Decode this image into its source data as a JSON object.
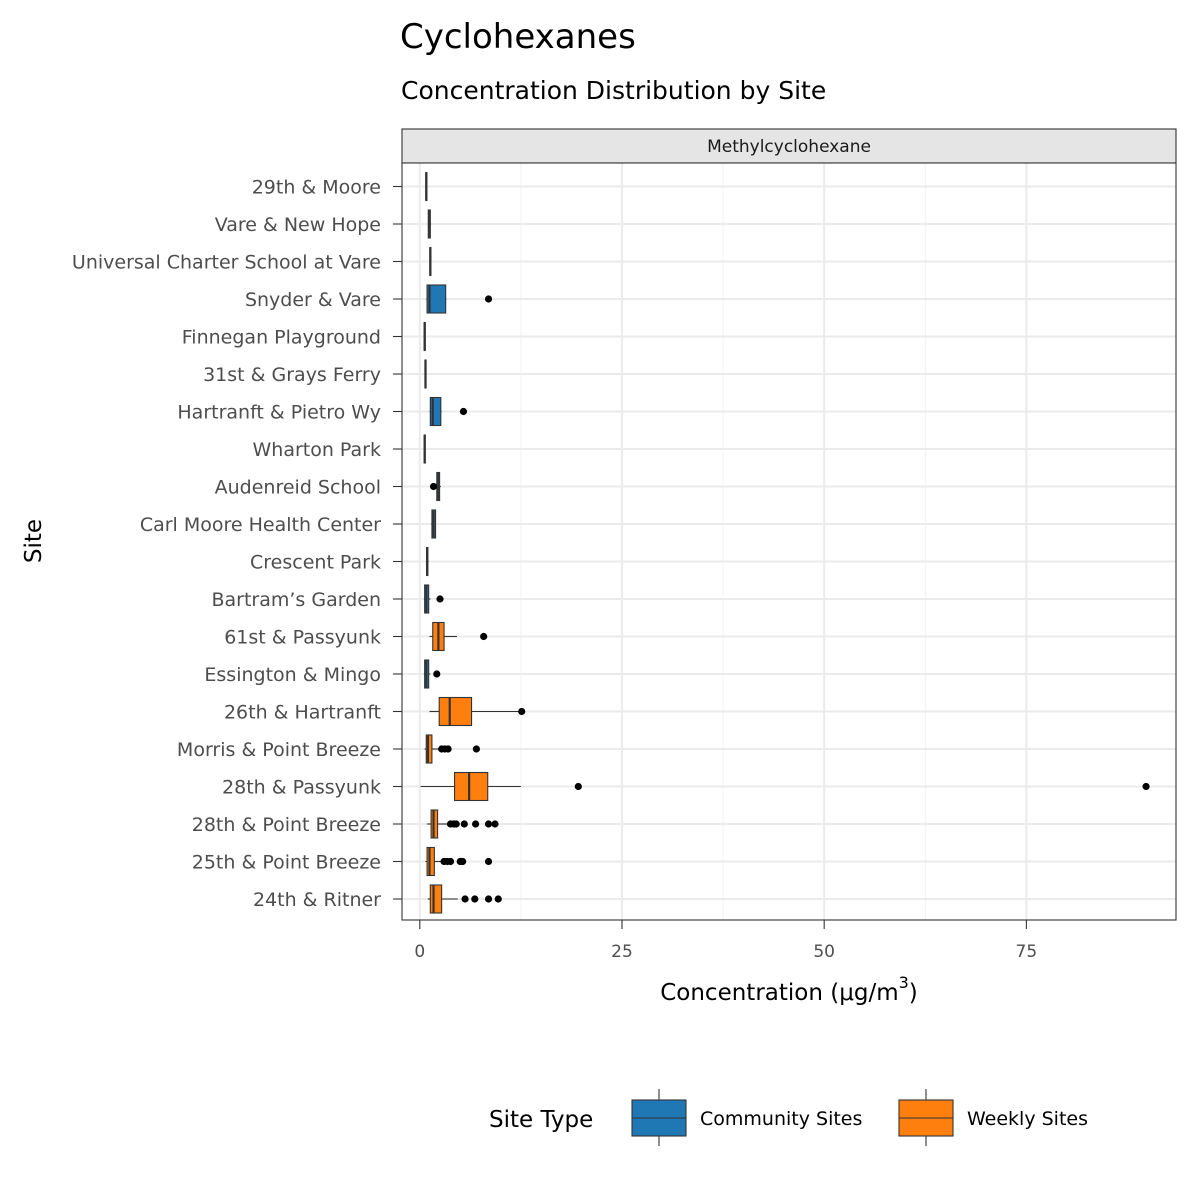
{
  "chart_data": {
    "type": "boxplot",
    "orientation": "horizontal",
    "title": "Cyclohexanes",
    "subtitle": "Concentration Distribution by Site",
    "facet": "Methylcyclohexane",
    "xlabel": "Concentration (μg/m",
    "xlabel_superscript": "3",
    "xlabel_suffix": ")",
    "ylabel": "Site",
    "xlim": [
      -2.2,
      93.5
    ],
    "xticks": [
      0,
      25,
      50,
      75
    ],
    "grid": true,
    "legend": {
      "title": "Site Type",
      "position": "bottom",
      "entries": [
        {
          "label": "Community Sites",
          "color": "#1f77b4"
        },
        {
          "label": "Weekly Sites",
          "color": "#ff7f0e"
        }
      ]
    },
    "series": [
      {
        "site": "29th & Moore",
        "type": "Community Sites",
        "min": 0.7,
        "q1": 0.75,
        "median": 0.8,
        "q3": 0.85,
        "max": 0.9,
        "outliers": []
      },
      {
        "site": "Vare & New Hope",
        "type": "Community Sites",
        "min": 1.0,
        "q1": 1.05,
        "median": 1.15,
        "q3": 1.3,
        "max": 1.4,
        "outliers": []
      },
      {
        "site": "Universal Charter School at Vare",
        "type": "Community Sites",
        "min": 1.2,
        "q1": 1.25,
        "median": 1.3,
        "q3": 1.35,
        "max": 1.4,
        "outliers": []
      },
      {
        "site": "Snyder & Vare",
        "type": "Community Sites",
        "min": 0.8,
        "q1": 0.9,
        "median": 1.2,
        "q3": 3.2,
        "max": 3.3,
        "outliers": [
          8.5
        ]
      },
      {
        "site": "Finnegan Playground",
        "type": "Community Sites",
        "min": 0.5,
        "q1": 0.55,
        "median": 0.6,
        "q3": 0.65,
        "max": 0.7,
        "outliers": []
      },
      {
        "site": "31st & Grays Ferry",
        "type": "Community Sites",
        "min": 0.6,
        "q1": 0.65,
        "median": 0.7,
        "q3": 0.75,
        "max": 0.8,
        "outliers": []
      },
      {
        "site": "Hartranft & Pietro Wy",
        "type": "Community Sites",
        "min": 1.2,
        "q1": 1.3,
        "median": 1.6,
        "q3": 2.6,
        "max": 2.7,
        "outliers": [
          5.4
        ]
      },
      {
        "site": "Wharton Park",
        "type": "Community Sites",
        "min": 0.5,
        "q1": 0.55,
        "median": 0.6,
        "q3": 0.65,
        "max": 0.7,
        "outliers": []
      },
      {
        "site": "Audenreid School",
        "type": "Community Sites",
        "min": 2.0,
        "q1": 2.1,
        "median": 2.3,
        "q3": 2.45,
        "max": 2.6,
        "outliers": [
          1.7
        ]
      },
      {
        "site": "Carl Moore Health Center",
        "type": "Community Sites",
        "min": 1.4,
        "q1": 1.5,
        "median": 1.7,
        "q3": 1.95,
        "max": 2.0,
        "outliers": []
      },
      {
        "site": "Crescent Park",
        "type": "Community Sites",
        "min": 0.8,
        "q1": 0.85,
        "median": 0.9,
        "q3": 1.0,
        "max": 1.1,
        "outliers": []
      },
      {
        "site": "Bartram’s Garden",
        "type": "Community Sites",
        "min": 0.5,
        "q1": 0.6,
        "median": 0.8,
        "q3": 1.1,
        "max": 1.3,
        "outliers": [
          2.5
        ]
      },
      {
        "site": "61st & Passyunk",
        "type": "Weekly Sites",
        "min": 1.2,
        "q1": 1.6,
        "median": 2.3,
        "q3": 3.0,
        "max": 4.6,
        "outliers": [
          7.9
        ]
      },
      {
        "site": "Essington & Mingo",
        "type": "Community Sites",
        "min": 0.5,
        "q1": 0.6,
        "median": 0.8,
        "q3": 1.1,
        "max": 1.3,
        "outliers": [
          2.1
        ]
      },
      {
        "site": "26th & Hartranft",
        "type": "Weekly Sites",
        "min": 1.2,
        "q1": 2.4,
        "median": 3.7,
        "q3": 6.4,
        "max": 12.3,
        "outliers": [
          12.6
        ]
      },
      {
        "site": "Morris & Point Breeze",
        "type": "Weekly Sites",
        "min": 0.6,
        "q1": 0.8,
        "median": 1.0,
        "q3": 1.5,
        "max": 2.3,
        "outliers": [
          2.7,
          3.1,
          3.5,
          7.0
        ]
      },
      {
        "site": "28th & Passyunk",
        "type": "Weekly Sites",
        "min": 0.1,
        "q1": 4.3,
        "median": 6.1,
        "q3": 8.4,
        "max": 12.5,
        "outliers": [
          19.6,
          89.8
        ]
      },
      {
        "site": "28th & Point Breeze",
        "type": "Weekly Sites",
        "min": 0.9,
        "q1": 1.4,
        "median": 1.7,
        "q3": 2.2,
        "max": 3.5,
        "outliers": [
          3.8,
          4.2,
          4.5,
          5.5,
          6.9,
          8.5,
          9.3
        ]
      },
      {
        "site": "25th & Point Breeze",
        "type": "Weekly Sites",
        "min": 0.7,
        "q1": 0.9,
        "median": 1.2,
        "q3": 1.8,
        "max": 2.6,
        "outliers": [
          3.0,
          3.4,
          3.8,
          5.0,
          5.3,
          8.5
        ]
      },
      {
        "site": "24th & Ritner",
        "type": "Weekly Sites",
        "min": 1.0,
        "q1": 1.3,
        "median": 1.7,
        "q3": 2.7,
        "max": 4.7,
        "outliers": [
          5.6,
          6.8,
          8.5,
          9.7
        ]
      }
    ]
  }
}
